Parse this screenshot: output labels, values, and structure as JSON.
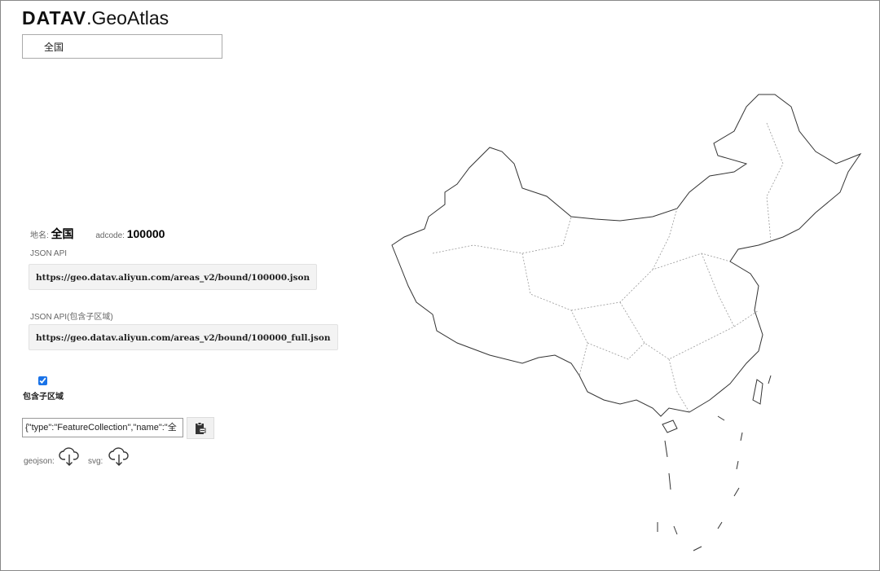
{
  "header": {
    "logo_bold": "DATAV",
    "logo_light": ".GeoAtlas"
  },
  "region_select": {
    "value": "全国"
  },
  "info": {
    "name_label": "地名:",
    "name_value": "全国",
    "adcode_label": "adcode:",
    "adcode_value": "100000"
  },
  "api": {
    "label": "JSON API",
    "url": "https://geo.datav.aliyun.com/areas_v2/bound/100000.json"
  },
  "api_full": {
    "label": "JSON API(包含子区域)",
    "url": "https://geo.datav.aliyun.com/areas_v2/bound/100000_full.json"
  },
  "include_sub": {
    "label": "包含子区域",
    "checked": true
  },
  "json_output": {
    "value": "{\"type\":\"FeatureCollection\",\"name\":\"全"
  },
  "download": {
    "geojson_label": "geojson:",
    "svg_label": "svg:"
  },
  "icons": {
    "copy": "clipboard-icon",
    "download": "cloud-download-icon"
  },
  "colors": {
    "checkbox": "#1a73e8"
  }
}
